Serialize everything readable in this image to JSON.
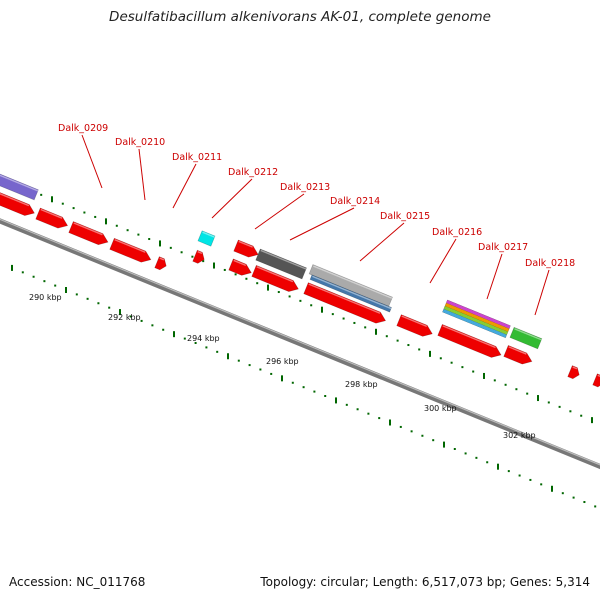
{
  "title": "Desulfatibacillum alkenivorans AK-01, complete genome",
  "footer": {
    "accession": "Accession: NC_011768",
    "stats": "Topology: circular; Length: 6,517,073 bp; Genes: 5,314"
  },
  "colors": {
    "cds": "#ee0000",
    "backbone": "#777777",
    "tick": "#006600",
    "label": "#cc0000",
    "trna": "#00e5e5",
    "rrna_dark": "#555555",
    "rrna_blue": "#4477aa",
    "multi_stripe": [
      "#cc44cc",
      "#ee9900",
      "#88cc33",
      "#44aadd"
    ],
    "green_feature": "#33bb33",
    "purple_feature": "#7766cc"
  },
  "kbp_labels": [
    "290 kbp",
    "292 kbp",
    "294 kbp",
    "296 kbp",
    "298 kbp",
    "300 kbp",
    "302 kbp"
  ],
  "gene_labels": [
    "Dalk_0209",
    "Dalk_0210",
    "Dalk_0211",
    "Dalk_0212",
    "Dalk_0213",
    "Dalk_0214",
    "Dalk_0215",
    "Dalk_0216",
    "Dalk_0217",
    "Dalk_0218"
  ]
}
